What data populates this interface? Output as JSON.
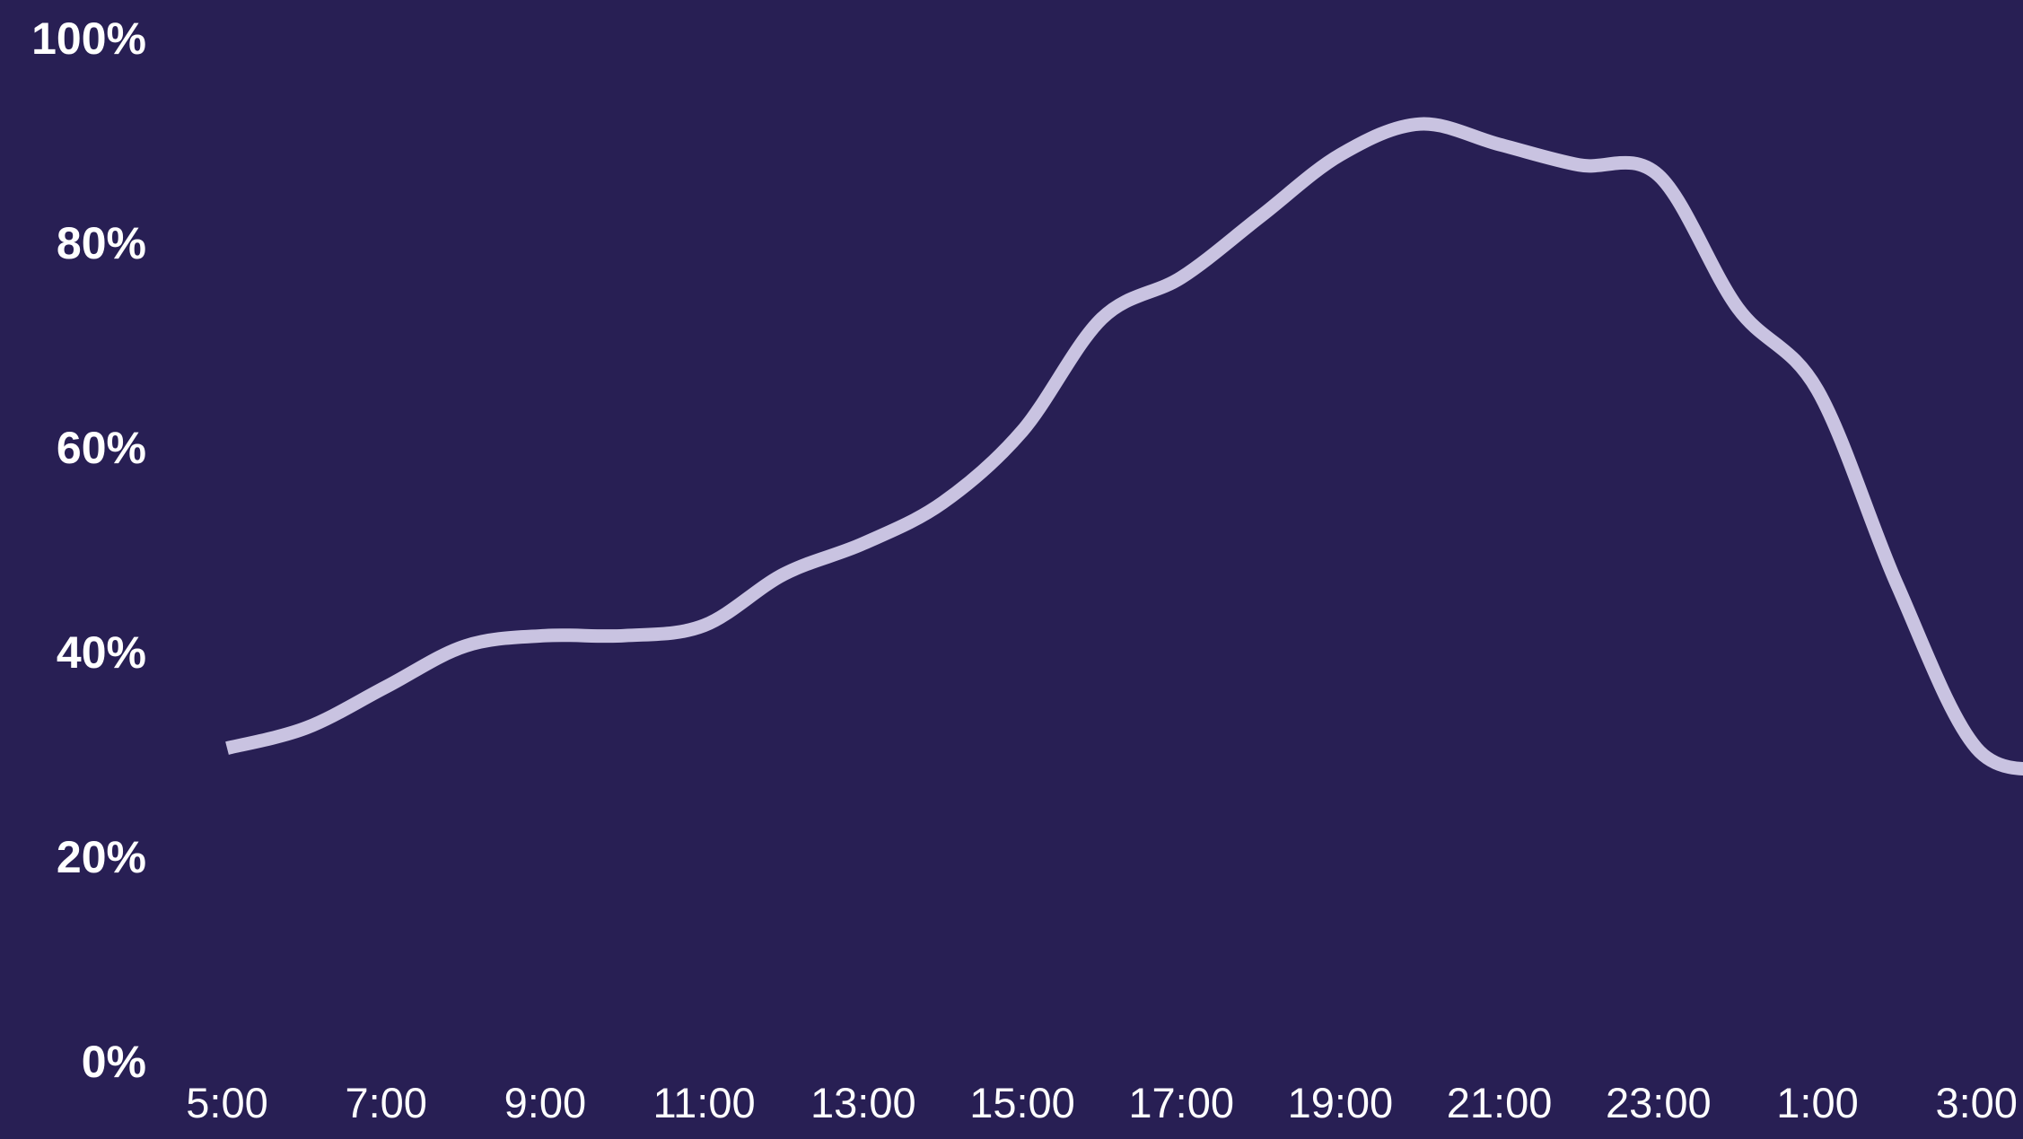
{
  "chart_data": {
    "type": "line",
    "title": "",
    "xlabel": "",
    "ylabel": "",
    "x_tick_labels": [
      "5:00",
      "7:00",
      "9:00",
      "11:00",
      "13:00",
      "15:00",
      "17:00",
      "19:00",
      "21:00",
      "23:00",
      "1:00",
      "3:00"
    ],
    "y_tick_labels": [
      "0%",
      "20%",
      "40%",
      "60%",
      "80%",
      "100%"
    ],
    "y_ticks": [
      0,
      20,
      40,
      60,
      80,
      100
    ],
    "ylim": [
      0,
      100
    ],
    "grid": false,
    "legend": "none",
    "x_hours": [
      5,
      6,
      7,
      8,
      9,
      10,
      11,
      12,
      13,
      14,
      15,
      16,
      17,
      18,
      19,
      20,
      21,
      22,
      23,
      24,
      25,
      26,
      27,
      28
    ],
    "series": [
      {
        "values": [
          31,
          33,
          37,
          41,
          42,
          42,
          43,
          48,
          51,
          55,
          62,
          73,
          77,
          83,
          89,
          92,
          90,
          88,
          87,
          74,
          66,
          47,
          31,
          29
        ]
      }
    ]
  },
  "colors": {
    "background": "#281f54",
    "line": "#c9c3e1",
    "text": "#ffffff"
  }
}
